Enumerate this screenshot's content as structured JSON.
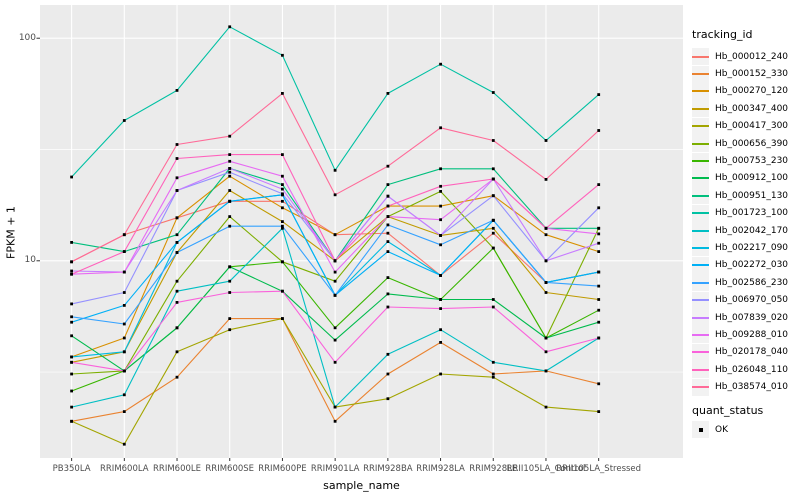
{
  "figure": {
    "background": "#FFFFFF",
    "panel_background": "#EBEBEB",
    "grid_color": "#FFFFFF",
    "tick_mark_color": "#333333",
    "tick_label_color": "#4D4D4D",
    "point_color": "#000000"
  },
  "chart_data": {
    "type": "line",
    "title": "",
    "xlabel": "sample_name",
    "ylabel": "FPKM + 1",
    "y_scale": "log10",
    "y_ticks": [
      10,
      100
    ],
    "y_tick_labels": [
      "10",
      "100"
    ],
    "y_minor_breaks": [
      3.162,
      31.623
    ],
    "y_range": [
      1.3,
      141
    ],
    "grid": "on",
    "legend_position": "right",
    "point_marker": "filled-square",
    "categories": [
      "PB350LA",
      "RRIM600LA",
      "RRIM600LE",
      "RRIM600SE",
      "RRIM600PE",
      "RRIM901LA",
      "RRIM928BA",
      "RRIM928LA",
      "RRIM928LE",
      "RRII105LA_Control",
      "RRII105LA_Stressed"
    ],
    "legend": {
      "title": "tracking_id"
    },
    "legend2": {
      "title": "quant_status",
      "items": [
        {
          "label": "OK",
          "marker": "filled-square",
          "color": "#000000"
        }
      ]
    },
    "series": [
      {
        "name": "Hb_000012_240",
        "color": "#F8766D",
        "values": [
          9.9,
          13.1,
          15.6,
          18.5,
          18.5,
          13.1,
          13.3,
          8.6,
          13.3,
          8.0,
          8.9
        ]
      },
      {
        "name": "Hb_000152_330",
        "color": "#EA8331",
        "values": [
          1.9,
          2.1,
          3.0,
          5.5,
          5.5,
          1.9,
          3.1,
          4.3,
          3.1,
          3.2,
          2.8
        ]
      },
      {
        "name": "Hb_000270_120",
        "color": "#D89000",
        "values": [
          3.7,
          4.5,
          15.6,
          24.0,
          17.3,
          13.1,
          17.6,
          17.6,
          19.6,
          13.1,
          11.0
        ]
      },
      {
        "name": "Hb_000347_400",
        "color": "#C09B00",
        "values": [
          3.5,
          3.9,
          10.9,
          20.7,
          15.0,
          10.0,
          15.8,
          13.0,
          14.0,
          7.2,
          6.7
        ]
      },
      {
        "name": "Hb_000417_300",
        "color": "#A3A500",
        "values": [
          1.9,
          1.5,
          3.9,
          4.9,
          5.5,
          2.2,
          2.4,
          3.1,
          3.0,
          2.2,
          2.1
        ]
      },
      {
        "name": "Hb_000656_390",
        "color": "#7CAE00",
        "values": [
          3.1,
          3.2,
          8.1,
          15.8,
          9.9,
          8.1,
          15.8,
          20.5,
          11.4,
          4.5,
          14.0
        ]
      },
      {
        "name": "Hb_000753_230",
        "color": "#39B600",
        "values": [
          2.6,
          3.2,
          5.0,
          9.4,
          9.9,
          5.0,
          8.4,
          6.7,
          11.4,
          4.5,
          6.0
        ]
      },
      {
        "name": "Hb_000912_100",
        "color": "#00BB4E",
        "values": [
          4.6,
          3.2,
          5.0,
          9.4,
          7.3,
          4.4,
          7.1,
          6.7,
          6.7,
          4.5,
          5.3
        ]
      },
      {
        "name": "Hb_000951_130",
        "color": "#00BF7D",
        "values": [
          12.1,
          11.0,
          13.1,
          26.0,
          22.0,
          10.0,
          22.0,
          25.9,
          25.9,
          14.0,
          14.0
        ]
      },
      {
        "name": "Hb_001723_100",
        "color": "#00C1A3",
        "values": [
          23.8,
          42.7,
          58.3,
          112.5,
          83.8,
          25.5,
          56.5,
          76.4,
          57.0,
          34.7,
          55.8
        ]
      },
      {
        "name": "Hb_002042_170",
        "color": "#00BFC4",
        "values": [
          2.2,
          2.5,
          7.3,
          8.1,
          14.0,
          2.2,
          3.8,
          4.9,
          3.5,
          3.2,
          4.5
        ]
      },
      {
        "name": "Hb_002217_090",
        "color": "#00BAE0",
        "values": [
          3.7,
          3.9,
          12.1,
          18.5,
          19.8,
          7.0,
          12.2,
          8.6,
          15.2,
          8.0,
          8.9
        ]
      },
      {
        "name": "Hb_002272_030",
        "color": "#00B0F6",
        "values": [
          5.3,
          6.3,
          12.1,
          18.5,
          19.8,
          7.0,
          11.0,
          8.6,
          15.2,
          8.0,
          8.9
        ]
      },
      {
        "name": "Hb_002586_230",
        "color": "#35A2FF",
        "values": [
          5.6,
          5.2,
          10.9,
          14.3,
          14.3,
          7.0,
          14.5,
          11.8,
          15.2,
          8.0,
          7.7
        ]
      },
      {
        "name": "Hb_006970_050",
        "color": "#9590FF",
        "values": [
          6.4,
          7.2,
          20.7,
          25.0,
          20.0,
          10.0,
          19.5,
          13.0,
          19.6,
          10.0,
          17.3
        ]
      },
      {
        "name": "Hb_007839_020",
        "color": "#C77CFF",
        "values": [
          9.0,
          8.9,
          20.7,
          26.0,
          21.0,
          10.0,
          19.5,
          13.0,
          23.3,
          10.0,
          12.0
        ]
      },
      {
        "name": "Hb_009288_010",
        "color": "#E76BF3",
        "values": [
          8.7,
          8.9,
          23.6,
          28.0,
          24.0,
          8.9,
          15.8,
          15.3,
          23.3,
          14.0,
          13.2
        ]
      },
      {
        "name": "Hb_020178_040",
        "color": "#FA62DB",
        "values": [
          3.5,
          3.2,
          6.5,
          7.2,
          7.3,
          3.5,
          6.2,
          6.1,
          6.2,
          3.9,
          4.5
        ]
      },
      {
        "name": "Hb_026048_110",
        "color": "#FF62BC",
        "values": [
          8.7,
          11.0,
          28.8,
          30.0,
          30.0,
          10.0,
          17.6,
          21.6,
          23.3,
          14.0,
          22.0
        ]
      },
      {
        "name": "Hb_038574_010",
        "color": "#FF6A98",
        "values": [
          9.9,
          13.1,
          33.3,
          36.3,
          56.5,
          19.8,
          26.6,
          39.6,
          34.7,
          23.2,
          38.5
        ]
      }
    ]
  }
}
